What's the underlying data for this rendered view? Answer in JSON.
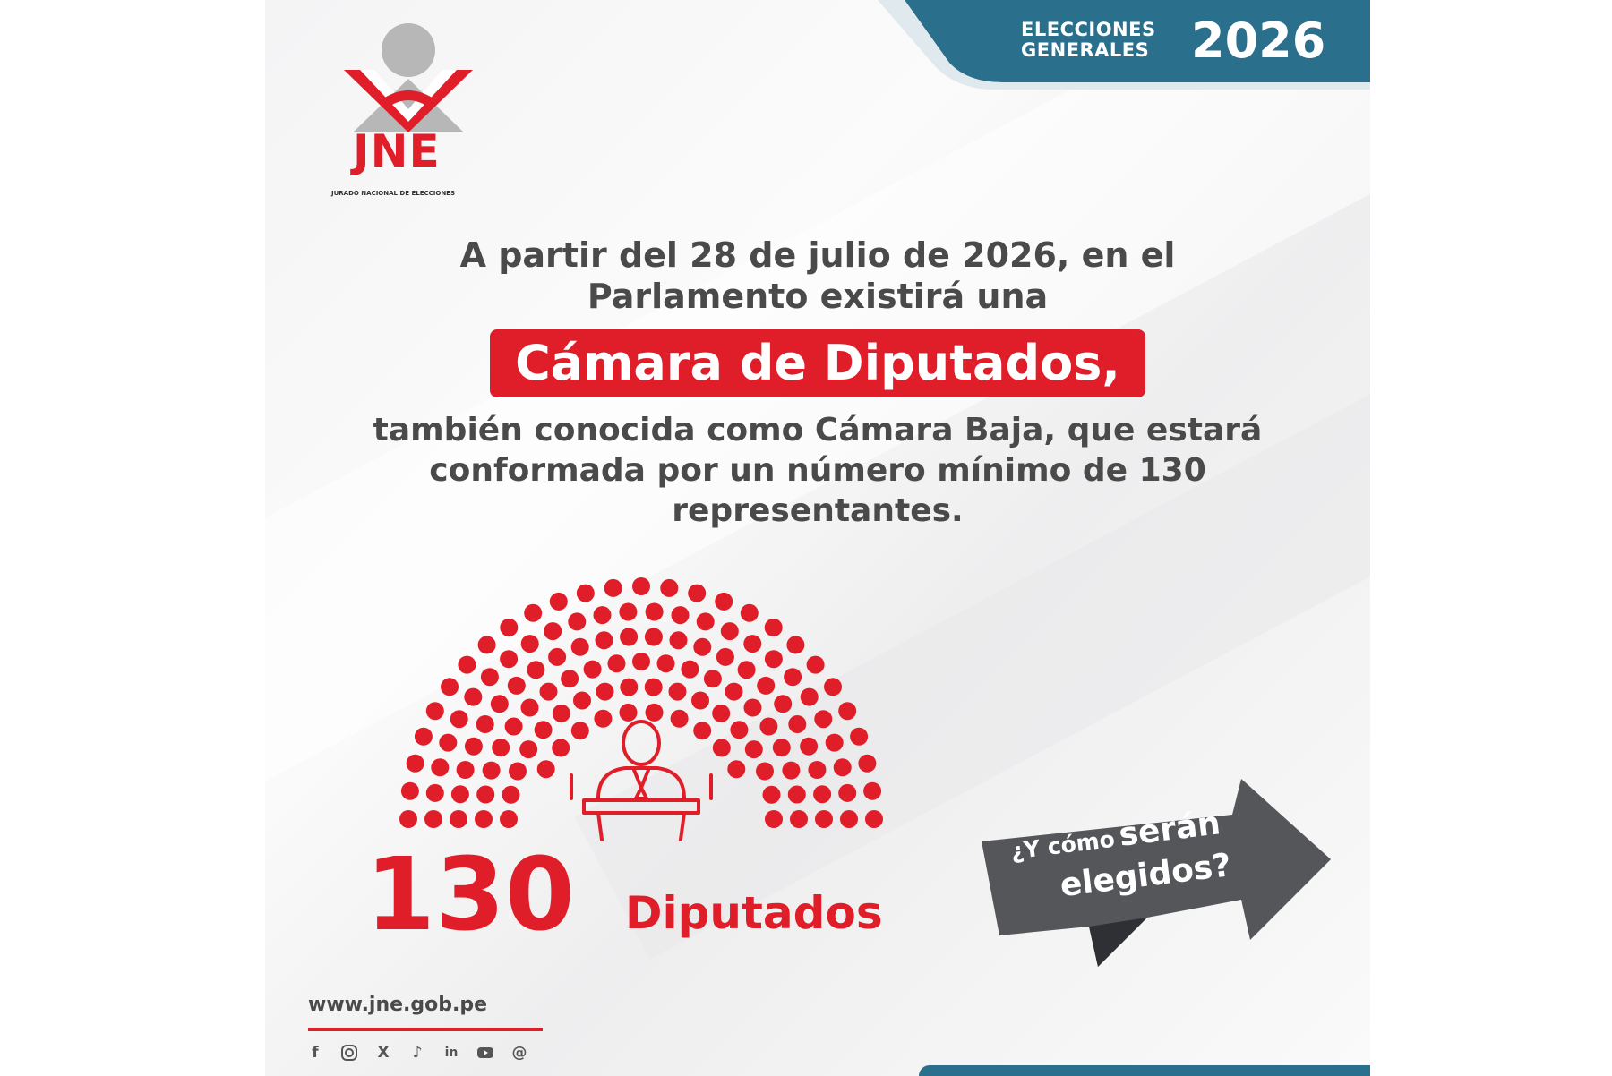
{
  "brand": {
    "logo_name": "JNE",
    "logo_subtitle": "JURADO NACIONAL DE ELECCIONES",
    "primary_color": "#e01e2a",
    "banner_color": "#2a6f8c"
  },
  "banner": {
    "line1": "ELECCIONES",
    "line2": "GENERALES",
    "year": "2026"
  },
  "intro": {
    "line1": "A partir del 28 de julio de 2026, en el",
    "line2": "Parlamento existirá una"
  },
  "highlight": "Cámara de Diputados,",
  "description": {
    "line1": "también conocida como Cámara Baja, que estará",
    "line2": "conformada por un número mínimo de 130",
    "line3": "representantes."
  },
  "seats": {
    "count": "130",
    "label": "Diputados",
    "icon": "podium-speaker-icon"
  },
  "cta": {
    "part1": "¿Y cómo",
    "part2": "serán",
    "part3": "elegidos?"
  },
  "footer": {
    "url": "www.jne.gob.pe",
    "social": [
      "facebook-icon",
      "instagram-icon",
      "x-icon",
      "tiktok-icon",
      "linkedin-icon",
      "youtube-icon",
      "threads-icon"
    ]
  }
}
